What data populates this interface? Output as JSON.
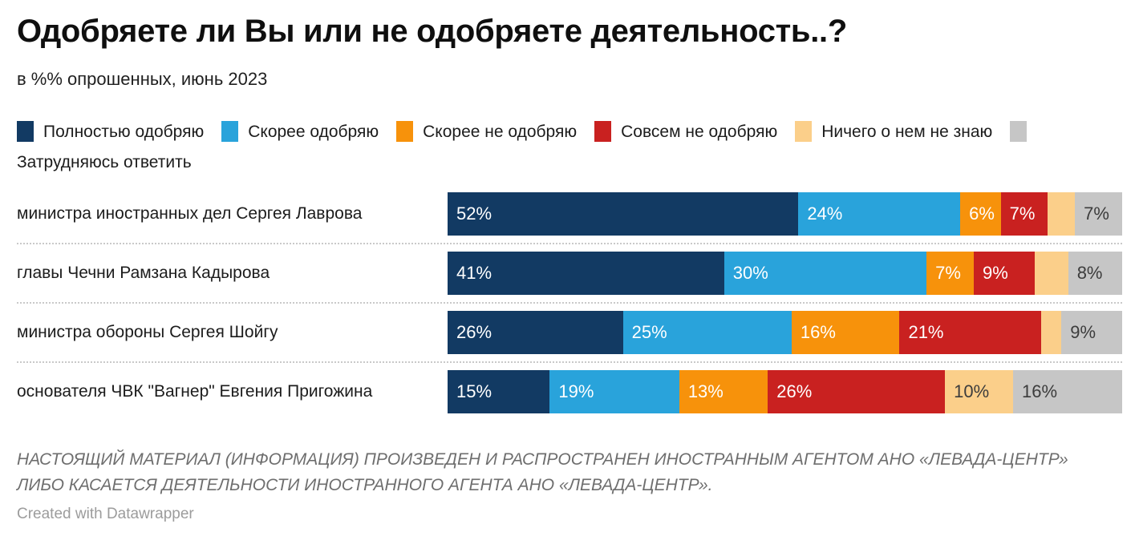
{
  "header": {
    "title": "Одобряете ли Вы или не одобряете деятельность..?",
    "subtitle": "в %% опрошенных, июнь 2023"
  },
  "chart_data": {
    "type": "bar",
    "variant": "stacked-horizontal-100",
    "unit": "%",
    "legend_position": "top",
    "grid": false,
    "min_value_for_label": 6,
    "categories": [
      "министра иностранных дел Сергея Лаврова",
      "главы Чечни Рамзана Кадырова",
      "министра обороны Сергея Шойгу",
      "основателя ЧВК \"Вагнер\" Евгения Пригожина"
    ],
    "series": [
      {
        "name": "Полностью одобряю",
        "color": "#123a63",
        "label_color": "#ffffff",
        "values": [
          52,
          41,
          26,
          15
        ]
      },
      {
        "name": "Скорее одобряю",
        "color": "#29a3db",
        "label_color": "#ffffff",
        "values": [
          24,
          30,
          25,
          19
        ]
      },
      {
        "name": "Скорее не одобряю",
        "color": "#f7920b",
        "label_color": "#ffffff",
        "values": [
          6,
          7,
          16,
          13
        ]
      },
      {
        "name": "Совсем не одобряю",
        "color": "#c92120",
        "label_color": "#ffffff",
        "values": [
          7,
          9,
          21,
          26
        ]
      },
      {
        "name": "Ничего о нем не знаю",
        "color": "#fbcf8a",
        "label_color": "#3c3c3c",
        "values": [
          4,
          5,
          3,
          10
        ]
      },
      {
        "name": "Затрудняюсь ответить",
        "color": "#c6c6c6",
        "label_color": "#3c3c3c",
        "values": [
          7,
          8,
          9,
          16
        ]
      }
    ]
  },
  "footer": {
    "disclaimer": "НАСТОЯЩИЙ МАТЕРИАЛ (ИНФОРМАЦИЯ) ПРОИЗВЕДЕН И РАСПРОСТРАНЕН ИНОСТРАННЫМ АГЕНТОМ АНО «ЛЕВАДА-ЦЕНТР» ЛИБО КАСАЕТСЯ ДЕЯТЕЛЬНОСТИ ИНОСТРАННОГО АГЕНТА АНО «ЛЕВАДА-ЦЕНТР».",
    "credit": "Created with Datawrapper"
  }
}
